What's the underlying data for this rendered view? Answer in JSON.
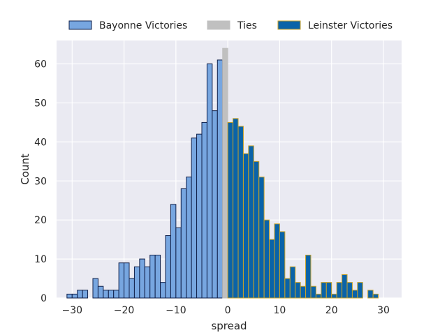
{
  "chart_data": {
    "type": "histogram",
    "xlabel": "spread",
    "ylabel": "Count",
    "xlim": [
      -33,
      33.5
    ],
    "ylim": [
      0,
      66
    ],
    "bin_width": 1,
    "xticks": [
      -30,
      -20,
      -10,
      0,
      10,
      20,
      30
    ],
    "yticks": [
      0,
      10,
      20,
      30,
      40,
      50,
      60
    ],
    "grid": true,
    "legend_position": "top, outside, horizontal",
    "series": [
      {
        "name": "Bayonne Victories",
        "color": "#77a6e0",
        "edge_color": "#10204a",
        "bins": [
          {
            "x": -31,
            "count": 1
          },
          {
            "x": -30,
            "count": 1
          },
          {
            "x": -29,
            "count": 2
          },
          {
            "x": -28,
            "count": 2
          },
          {
            "x": -26,
            "count": 5
          },
          {
            "x": -25,
            "count": 3
          },
          {
            "x": -24,
            "count": 2
          },
          {
            "x": -23,
            "count": 2
          },
          {
            "x": -22,
            "count": 2
          },
          {
            "x": -21,
            "count": 9
          },
          {
            "x": -20,
            "count": 9
          },
          {
            "x": -19,
            "count": 5
          },
          {
            "x": -18,
            "count": 8
          },
          {
            "x": -17,
            "count": 10
          },
          {
            "x": -16,
            "count": 8
          },
          {
            "x": -15,
            "count": 11
          },
          {
            "x": -14,
            "count": 11
          },
          {
            "x": -13,
            "count": 4
          },
          {
            "x": -12,
            "count": 16
          },
          {
            "x": -11,
            "count": 24
          },
          {
            "x": -10,
            "count": 18
          },
          {
            "x": -9,
            "count": 28
          },
          {
            "x": -8,
            "count": 31
          },
          {
            "x": -7,
            "count": 41
          },
          {
            "x": -6,
            "count": 42
          },
          {
            "x": -5,
            "count": 45
          },
          {
            "x": -4,
            "count": 60
          },
          {
            "x": -3,
            "count": 48
          },
          {
            "x": -2,
            "count": 61
          }
        ]
      },
      {
        "name": "Ties",
        "color": "#c0c0c0",
        "edge_color": "#c0c0c0",
        "bins": [
          {
            "x": -1,
            "count": 64
          }
        ]
      },
      {
        "name": "Leinster Victories",
        "color": "#0a63a8",
        "edge_color": "#c9a227",
        "bins": [
          {
            "x": 0,
            "count": 45
          },
          {
            "x": 1,
            "count": 46
          },
          {
            "x": 2,
            "count": 44
          },
          {
            "x": 3,
            "count": 37
          },
          {
            "x": 4,
            "count": 39
          },
          {
            "x": 5,
            "count": 35
          },
          {
            "x": 6,
            "count": 31
          },
          {
            "x": 7,
            "count": 20
          },
          {
            "x": 8,
            "count": 15
          },
          {
            "x": 9,
            "count": 19
          },
          {
            "x": 10,
            "count": 17
          },
          {
            "x": 11,
            "count": 5
          },
          {
            "x": 12,
            "count": 8
          },
          {
            "x": 13,
            "count": 4
          },
          {
            "x": 14,
            "count": 3
          },
          {
            "x": 15,
            "count": 11
          },
          {
            "x": 16,
            "count": 3
          },
          {
            "x": 17,
            "count": 1
          },
          {
            "x": 18,
            "count": 4
          },
          {
            "x": 19,
            "count": 4
          },
          {
            "x": 20,
            "count": 1
          },
          {
            "x": 21,
            "count": 4
          },
          {
            "x": 22,
            "count": 6
          },
          {
            "x": 23,
            "count": 4
          },
          {
            "x": 24,
            "count": 2
          },
          {
            "x": 25,
            "count": 4
          },
          {
            "x": 27,
            "count": 2
          },
          {
            "x": 28,
            "count": 1
          }
        ]
      }
    ]
  }
}
